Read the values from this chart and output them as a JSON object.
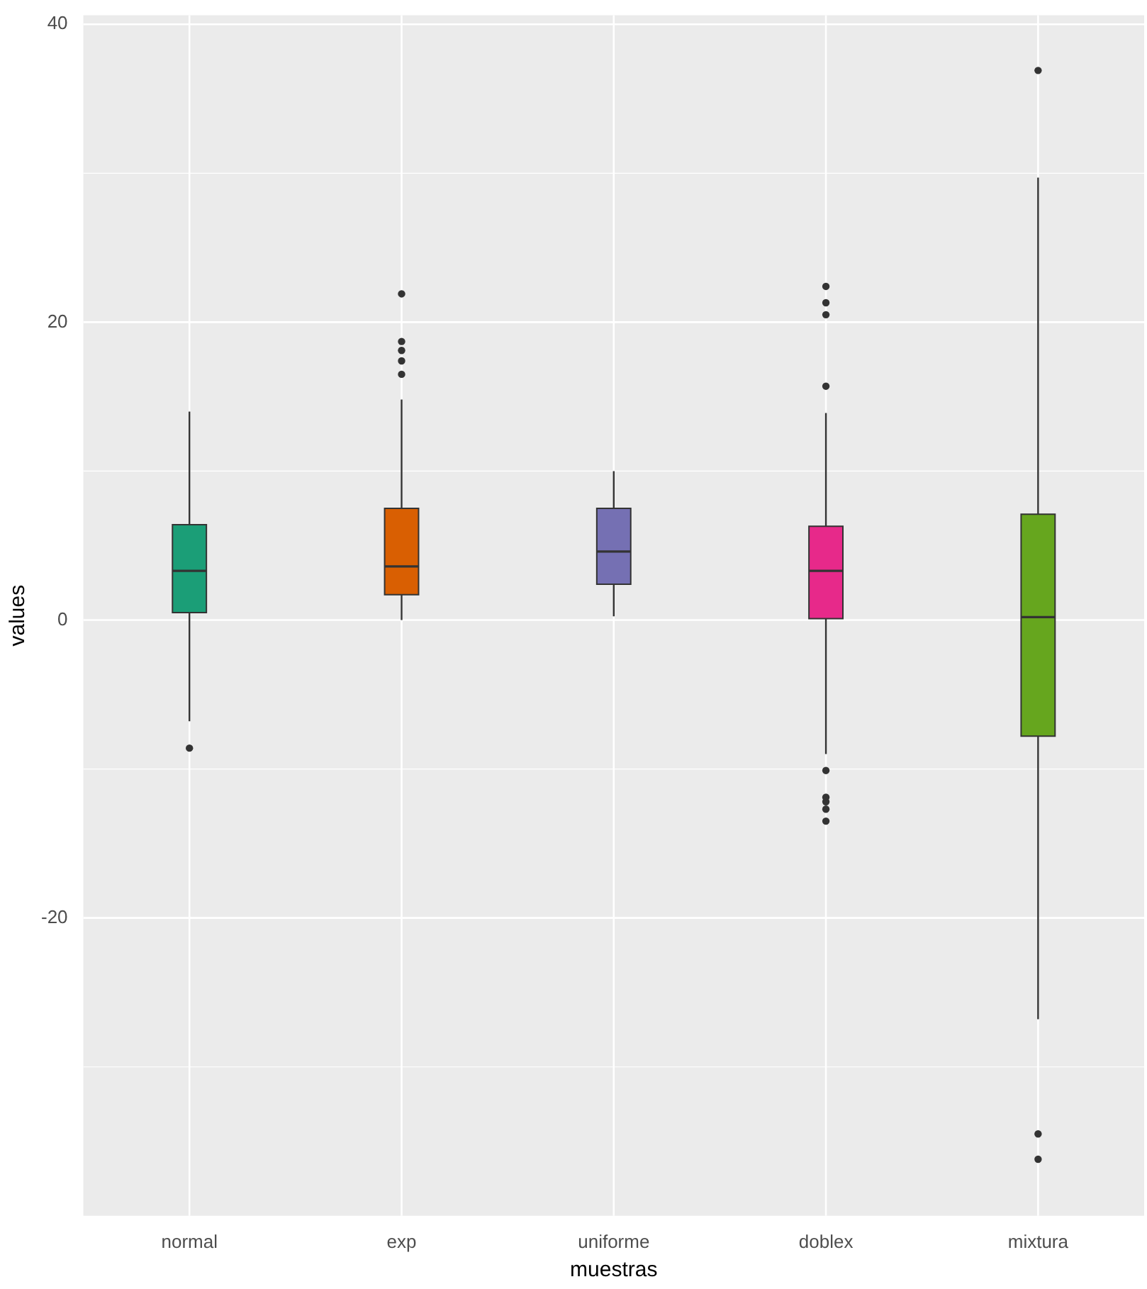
{
  "chart_data": {
    "type": "box",
    "xlabel": "muestras",
    "ylabel": "values",
    "categories": [
      "normal",
      "exp",
      "uniforme",
      "doblex",
      "mixtura"
    ],
    "colors": [
      "#1b9e77",
      "#d95f02",
      "#7570b3",
      "#e7298a",
      "#66a61e"
    ],
    "boxes": [
      {
        "low": -6.8,
        "q1": 0.5,
        "median": 3.3,
        "q3": 6.4,
        "high": 14.0,
        "outliers": [
          -8.6
        ]
      },
      {
        "low": 0.0,
        "q1": 1.7,
        "median": 3.6,
        "q3": 7.5,
        "high": 14.8,
        "outliers": [
          16.5,
          17.4,
          18.1,
          18.7,
          21.9
        ]
      },
      {
        "low": 0.25,
        "q1": 2.4,
        "median": 4.6,
        "q3": 7.5,
        "high": 10.0
      },
      {
        "low": -9.0,
        "q1": 0.1,
        "median": 3.3,
        "q3": 6.3,
        "high": 13.9,
        "outliers": [
          -13.5,
          -12.7,
          -12.2,
          -11.9,
          -10.1,
          15.7,
          20.5,
          21.3,
          22.4
        ]
      },
      {
        "low": -26.8,
        "q1": -7.8,
        "median": 0.2,
        "q3": 7.1,
        "high": 29.7,
        "outliers": [
          -36.2,
          -34.5,
          36.9
        ]
      }
    ],
    "ylim": [
      -40,
      40.6
    ],
    "yticks": [
      {
        "value": -30,
        "label": null
      },
      -20,
      {
        "value": -10,
        "label": null
      },
      0,
      {
        "value": 10,
        "label": null
      },
      20,
      {
        "value": 30,
        "label": null
      },
      40
    ],
    "grid": true
  }
}
